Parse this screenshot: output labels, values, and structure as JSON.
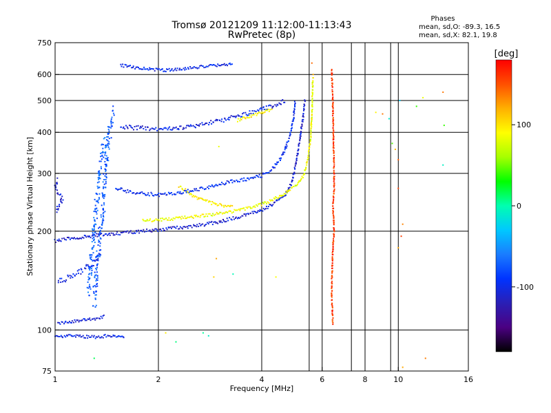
{
  "chart_data": {
    "type": "scatter",
    "title": "Tromsø 20121209 11:12:00-11:13:43",
    "subtitle": "RwPretec (8p)",
    "xlabel": "Frequency [MHz]",
    "ylabel": "Stationary phase Virtual Height [km]",
    "x_scale": "log",
    "y_scale": "log",
    "xlim": [
      1,
      16
    ],
    "ylim": [
      75,
      750
    ],
    "x_ticks": [
      1,
      2,
      4,
      6,
      8,
      10,
      16
    ],
    "y_ticks": [
      75,
      100,
      200,
      300,
      400,
      500,
      600,
      750
    ],
    "grid_x": [
      2,
      4,
      5.5,
      6,
      7.3,
      8,
      9.5,
      10
    ],
    "grid_y": [
      100,
      200,
      300,
      400,
      500,
      600
    ],
    "grid": true,
    "phase_info": {
      "heading": "Phases",
      "line1": "mean, sd,O:  -89.3, 16.5",
      "line2": "mean, sd,X:  82.1, 19.8"
    },
    "colorbar": {
      "label": "[deg]",
      "range": [
        -180,
        180
      ],
      "ticks": [
        100,
        0,
        -100
      ],
      "colors": [
        "#000000",
        "#4b0082",
        "#2a1fb5",
        "#0033ff",
        "#1a7cff",
        "#00c8ff",
        "#00ffb0",
        "#00ff00",
        "#a6ff00",
        "#ffff00",
        "#ffb000",
        "#ff5000",
        "#ff0000"
      ]
    },
    "series": [
      {
        "values": [
          [
            1,
            187
          ],
          [
            1.05,
            188
          ],
          [
            1.1,
            190
          ],
          [
            1.2,
            192
          ],
          [
            1.3,
            194
          ],
          [
            1.45,
            196
          ],
          [
            1.6,
            198
          ],
          [
            1.8,
            200
          ],
          [
            2.0,
            202
          ],
          [
            2.3,
            205
          ],
          [
            2.6,
            208
          ],
          [
            2.9,
            212
          ],
          [
            3.2,
            217
          ],
          [
            3.5,
            222
          ],
          [
            3.8,
            228
          ],
          [
            4.1,
            235
          ],
          [
            4.4,
            245
          ],
          [
            4.7,
            260
          ],
          [
            4.9,
            280
          ],
          [
            5.0,
            310
          ],
          [
            5.1,
            350
          ],
          [
            5.2,
            400
          ],
          [
            5.3,
            460
          ],
          [
            5.35,
            500
          ]
        ],
        "phase": -110,
        "spread": 0.012
      },
      {
        "values": [
          [
            1.8,
            215
          ],
          [
            2.2,
            218
          ],
          [
            2.6,
            222
          ],
          [
            3.0,
            226
          ],
          [
            3.4,
            231
          ],
          [
            3.8,
            237
          ],
          [
            4.2,
            246
          ],
          [
            4.6,
            258
          ],
          [
            5.0,
            275
          ],
          [
            5.3,
            295
          ],
          [
            5.45,
            330
          ],
          [
            5.55,
            380
          ],
          [
            5.6,
            450
          ],
          [
            5.62,
            520
          ],
          [
            5.64,
            590
          ]
        ],
        "phase": 85,
        "spread": 0.01
      },
      {
        "values": [
          [
            2.3,
            275
          ],
          [
            2.5,
            258
          ],
          [
            2.7,
            248
          ],
          [
            3.0,
            240
          ],
          [
            3.3,
            236
          ]
        ],
        "phase": 95,
        "spread": 0.012
      },
      {
        "values": [
          [
            1.5,
            270
          ],
          [
            1.7,
            262
          ],
          [
            2.0,
            258
          ],
          [
            2.3,
            262
          ],
          [
            2.6,
            268
          ],
          [
            2.9,
            275
          ],
          [
            3.2,
            282
          ],
          [
            3.6,
            288
          ],
          [
            4.0,
            295
          ],
          [
            4.3,
            310
          ],
          [
            4.6,
            340
          ],
          [
            4.8,
            380
          ],
          [
            4.95,
            440
          ],
          [
            5.0,
            500
          ]
        ],
        "phase": -95,
        "spread": 0.012
      },
      {
        "values": [
          [
            1.55,
            415
          ],
          [
            1.8,
            412
          ],
          [
            2.0,
            410
          ],
          [
            2.3,
            412
          ],
          [
            2.6,
            420
          ],
          [
            2.9,
            430
          ],
          [
            3.2,
            440
          ],
          [
            3.6,
            455
          ],
          [
            4.0,
            470
          ],
          [
            4.4,
            485
          ],
          [
            4.7,
            500
          ]
        ],
        "phase": -105,
        "spread": 0.015
      },
      {
        "values": [
          [
            3.4,
            435
          ],
          [
            3.7,
            448
          ],
          [
            4.0,
            460
          ],
          [
            4.3,
            470
          ]
        ],
        "phase": 95,
        "spread": 0.01
      },
      {
        "values": [
          [
            1.55,
            640
          ],
          [
            1.8,
            625
          ],
          [
            2.1,
            618
          ],
          [
            2.4,
            625
          ],
          [
            2.7,
            635
          ],
          [
            3.0,
            642
          ],
          [
            3.3,
            645
          ]
        ],
        "phase": -100,
        "spread": 0.01
      },
      {
        "values": [
          [
            1.3,
            120
          ],
          [
            1.32,
            150
          ],
          [
            1.35,
            190
          ],
          [
            1.38,
            240
          ],
          [
            1.4,
            300
          ],
          [
            1.42,
            360
          ],
          [
            1.45,
            420
          ],
          [
            1.48,
            470
          ]
        ],
        "phase": -75,
        "spread": 0.05
      },
      {
        "values": [
          [
            1.25,
            130
          ],
          [
            1.28,
            170
          ],
          [
            1.3,
            210
          ],
          [
            1.33,
            260
          ],
          [
            1.36,
            330
          ],
          [
            1.4,
            380
          ]
        ],
        "phase": -70,
        "spread": 0.05
      },
      {
        "values": [
          [
            1.02,
            140
          ],
          [
            1.1,
            145
          ],
          [
            1.2,
            152
          ],
          [
            1.3,
            160
          ],
          [
            1.35,
            170
          ]
        ],
        "phase": -100,
        "spread": 0.02
      },
      {
        "values": [
          [
            1.02,
            105
          ],
          [
            1.1,
            106
          ],
          [
            1.2,
            107
          ],
          [
            1.3,
            108
          ],
          [
            1.4,
            110
          ]
        ],
        "phase": -105,
        "spread": 0.01
      },
      {
        "values": [
          [
            1.01,
            230
          ],
          [
            1.05,
            250
          ],
          [
            1.0,
            270
          ],
          [
            1.02,
            290
          ]
        ],
        "phase": -110,
        "spread": 0.02
      },
      {
        "values": [
          [
            1.0,
            95
          ],
          [
            1.08,
            96
          ],
          [
            1.35,
            95
          ],
          [
            1.4,
            96
          ],
          [
            1.6,
            95
          ]
        ],
        "phase": -100,
        "spread": 0.01
      },
      {
        "values": [
          [
            6.4,
            620
          ],
          [
            6.45,
            470
          ],
          [
            6.5,
            300
          ],
          [
            6.5,
            270
          ],
          [
            6.45,
            240
          ],
          [
            6.5,
            200
          ],
          [
            6.45,
            180
          ],
          [
            6.4,
            140
          ],
          [
            6.4,
            125
          ],
          [
            6.45,
            104
          ]
        ],
        "phase": 160,
        "spread": 0.01
      },
      {
        "values": [
          [
            8.6,
            460
          ],
          [
            9.0,
            455
          ],
          [
            9.4,
            440
          ],
          [
            9.6,
            370
          ],
          [
            9.8,
            355
          ],
          [
            10.0,
            330
          ],
          [
            10.1,
            500
          ],
          [
            10.3,
            210
          ],
          [
            11.3,
            480
          ],
          [
            11.8,
            510
          ],
          [
            13.5,
            530
          ],
          [
            13.6,
            420
          ],
          [
            13.5,
            318
          ],
          [
            10.0,
            270
          ],
          [
            10.0,
            178
          ],
          [
            12.0,
            82
          ],
          [
            10.3,
            77
          ],
          [
            2.9,
            145
          ],
          [
            3.3,
            148
          ],
          [
            4.4,
            145
          ],
          [
            2.7,
            98
          ],
          [
            2.8,
            96
          ],
          [
            2.25,
            92
          ],
          [
            2.1,
            98
          ],
          [
            3.0,
            362
          ],
          [
            1.3,
            82
          ],
          [
            2.95,
            165
          ],
          [
            5.6,
            650
          ],
          [
            5.65,
            600
          ],
          [
            10.2,
            193
          ]
        ],
        "phase": 60,
        "spread": 0
      }
    ]
  }
}
